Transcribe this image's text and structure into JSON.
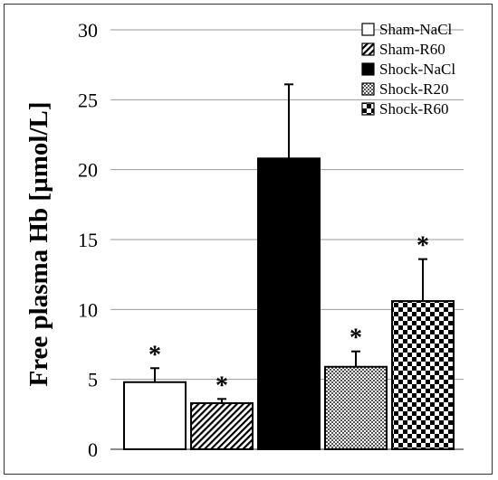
{
  "chart_data": {
    "type": "bar",
    "ylabel": "Free plasma Hb [µmol/L]",
    "ylim": [
      0,
      30
    ],
    "yticks": [
      0,
      5,
      10,
      15,
      20,
      25,
      30
    ],
    "grid": true,
    "legend_position": "top-right",
    "series": [
      {
        "name": "Sham-NaCl",
        "value": 4.8,
        "error": 1.0,
        "significant": true,
        "fill": "plain-white"
      },
      {
        "name": "Sham-R60",
        "value": 3.3,
        "error": 0.3,
        "significant": true,
        "fill": "diagonal-hatch"
      },
      {
        "name": "Shock-NaCl",
        "value": 20.8,
        "error": 5.3,
        "significant": false,
        "fill": "solid-black"
      },
      {
        "name": "Shock-R20",
        "value": 5.9,
        "error": 1.1,
        "significant": true,
        "fill": "fine-checker"
      },
      {
        "name": "Shock-R60",
        "value": 10.6,
        "error": 3.0,
        "significant": true,
        "fill": "coarse-checker"
      }
    ],
    "significance_marker": "*"
  }
}
